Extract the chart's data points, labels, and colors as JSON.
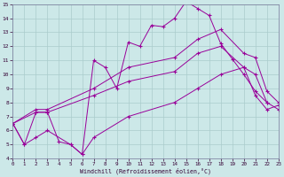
{
  "xlabel": "Windchill (Refroidissement éolien,°C)",
  "xlim": [
    0,
    23
  ],
  "ylim": [
    4,
    15
  ],
  "xticks": [
    0,
    1,
    2,
    3,
    4,
    5,
    6,
    7,
    8,
    9,
    10,
    11,
    12,
    13,
    14,
    15,
    16,
    17,
    18,
    19,
    20,
    21,
    22,
    23
  ],
  "yticks": [
    4,
    5,
    6,
    7,
    8,
    9,
    10,
    11,
    12,
    13,
    14,
    15
  ],
  "bg_color": "#cce8e8",
  "line_color": "#990099",
  "grid_color": "#aacccc",
  "jagged_x": [
    0,
    1,
    2,
    3,
    4,
    5,
    6,
    7,
    8,
    9,
    10,
    11,
    12,
    13,
    14,
    15,
    16,
    17,
    18,
    19,
    20,
    21,
    22
  ],
  "jagged_y": [
    6.5,
    5.0,
    7.3,
    7.3,
    5.2,
    5.0,
    4.3,
    11.0,
    10.5,
    9.0,
    12.3,
    12.0,
    13.5,
    13.4,
    14.0,
    15.2,
    14.7,
    14.2,
    12.2,
    11.1,
    10.0,
    8.8,
    8.0
  ],
  "upper_x": [
    0,
    2,
    3,
    7,
    10,
    14,
    16,
    18,
    20,
    21,
    22,
    23
  ],
  "upper_y": [
    6.5,
    7.5,
    7.5,
    9.0,
    10.5,
    11.2,
    12.5,
    13.2,
    11.5,
    11.2,
    8.8,
    8.0
  ],
  "mid_x": [
    0,
    2,
    3,
    7,
    10,
    14,
    16,
    18,
    20,
    21,
    22,
    23
  ],
  "mid_y": [
    6.5,
    7.3,
    7.3,
    8.5,
    9.5,
    10.2,
    11.5,
    12.0,
    10.5,
    10.0,
    8.0,
    7.5
  ],
  "low_x": [
    0,
    1,
    2,
    3,
    5,
    6,
    7,
    10,
    14,
    16,
    18,
    20,
    21,
    22,
    23
  ],
  "low_y": [
    6.5,
    5.0,
    5.5,
    6.0,
    5.0,
    4.3,
    5.5,
    7.0,
    8.0,
    9.0,
    10.0,
    10.5,
    8.5,
    7.5,
    7.8
  ]
}
